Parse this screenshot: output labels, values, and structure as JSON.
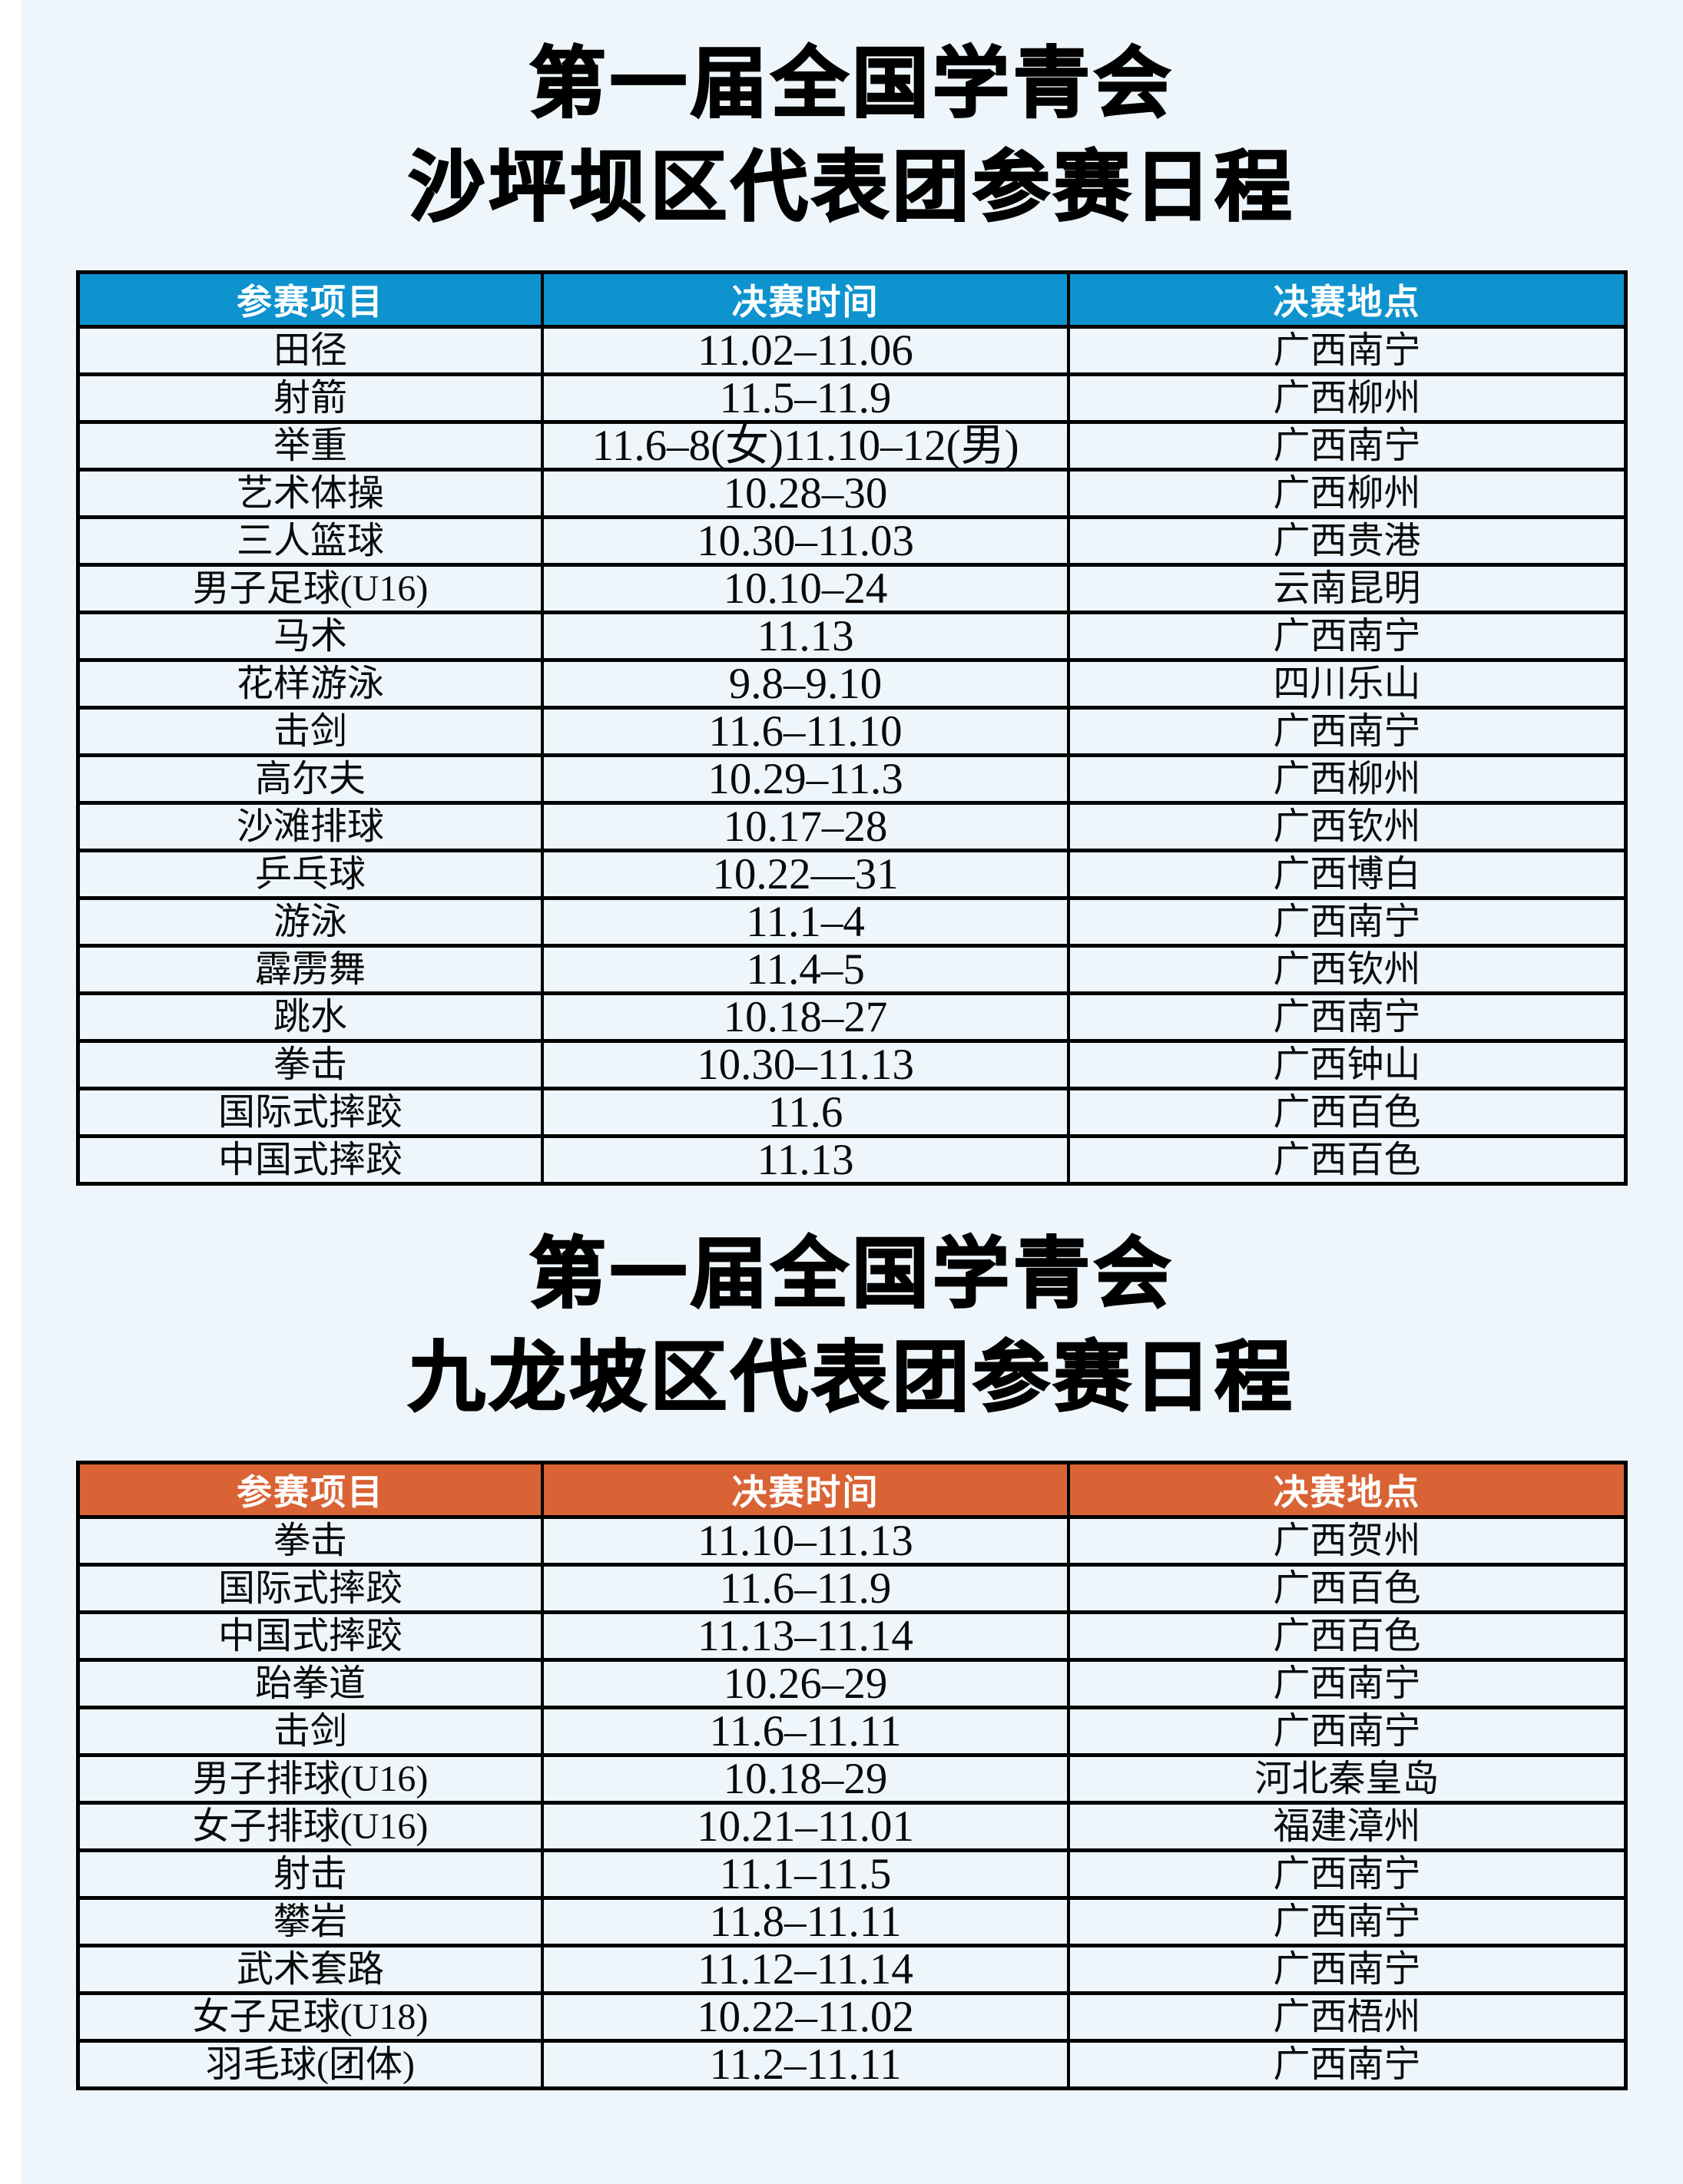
{
  "page": {
    "background_color": "#EEF6FB",
    "left_strip_color": "#FFFFFF",
    "border_color": "#000000",
    "header_text_color": "#FFFFFF"
  },
  "sections": [
    {
      "title_line1": "第一届全国学青会",
      "title_line2": "沙坪坝区代表团参赛日程",
      "header_bg": "#0E93CE",
      "columns": [
        "参赛项目",
        "决赛时间",
        "决赛地点"
      ],
      "rows": [
        [
          "田径",
          "11.02–11.06",
          "广西南宁"
        ],
        [
          "射箭",
          "11.5–11.9",
          "广西柳州"
        ],
        [
          "举重",
          "11.6–8(女)11.10–12(男)",
          "广西南宁"
        ],
        [
          "艺术体操",
          "10.28–30",
          "广西柳州"
        ],
        [
          "三人篮球",
          "10.30–11.03",
          "广西贵港"
        ],
        [
          "男子足球(U16)",
          "10.10–24",
          "云南昆明"
        ],
        [
          "马术",
          "11.13",
          "广西南宁"
        ],
        [
          "花样游泳",
          "9.8–9.10",
          "四川乐山"
        ],
        [
          "击剑",
          "11.6–11.10",
          "广西南宁"
        ],
        [
          "高尔夫",
          "10.29–11.3",
          "广西柳州"
        ],
        [
          "沙滩排球",
          "10.17–28",
          "广西钦州"
        ],
        [
          "乒乓球",
          "10.22—31",
          "广西博白"
        ],
        [
          "游泳",
          "11.1–4",
          "广西南宁"
        ],
        [
          "霹雳舞",
          "11.4–5",
          "广西钦州"
        ],
        [
          "跳水",
          "10.18–27",
          "广西南宁"
        ],
        [
          "拳击",
          "10.30–11.13",
          "广西钟山"
        ],
        [
          "国际式摔跤",
          "11.6",
          "广西百色"
        ],
        [
          "中国式摔跤",
          "11.13",
          "广西百色"
        ]
      ]
    },
    {
      "title_line1": "第一届全国学青会",
      "title_line2": "九龙坡区代表团参赛日程",
      "header_bg": "#D96334",
      "columns": [
        "参赛项目",
        "决赛时间",
        "决赛地点"
      ],
      "rows": [
        [
          "拳击",
          "11.10–11.13",
          "广西贺州"
        ],
        [
          "国际式摔跤",
          "11.6–11.9",
          "广西百色"
        ],
        [
          "中国式摔跤",
          "11.13–11.14",
          "广西百色"
        ],
        [
          "跆拳道",
          "10.26–29",
          "广西南宁"
        ],
        [
          "击剑",
          "11.6–11.11",
          "广西南宁"
        ],
        [
          "男子排球(U16)",
          "10.18–29",
          "河北秦皇岛"
        ],
        [
          "女子排球(U16)",
          "10.21–11.01",
          "福建漳州"
        ],
        [
          "射击",
          "11.1–11.5",
          "广西南宁"
        ],
        [
          "攀岩",
          "11.8–11.11",
          "广西南宁"
        ],
        [
          "武术套路",
          "11.12–11.14",
          "广西南宁"
        ],
        [
          "女子足球(U18)",
          "10.22–11.02",
          "广西梧州"
        ],
        [
          "羽毛球(团体)",
          "11.2–11.11",
          "广西南宁"
        ]
      ]
    }
  ]
}
